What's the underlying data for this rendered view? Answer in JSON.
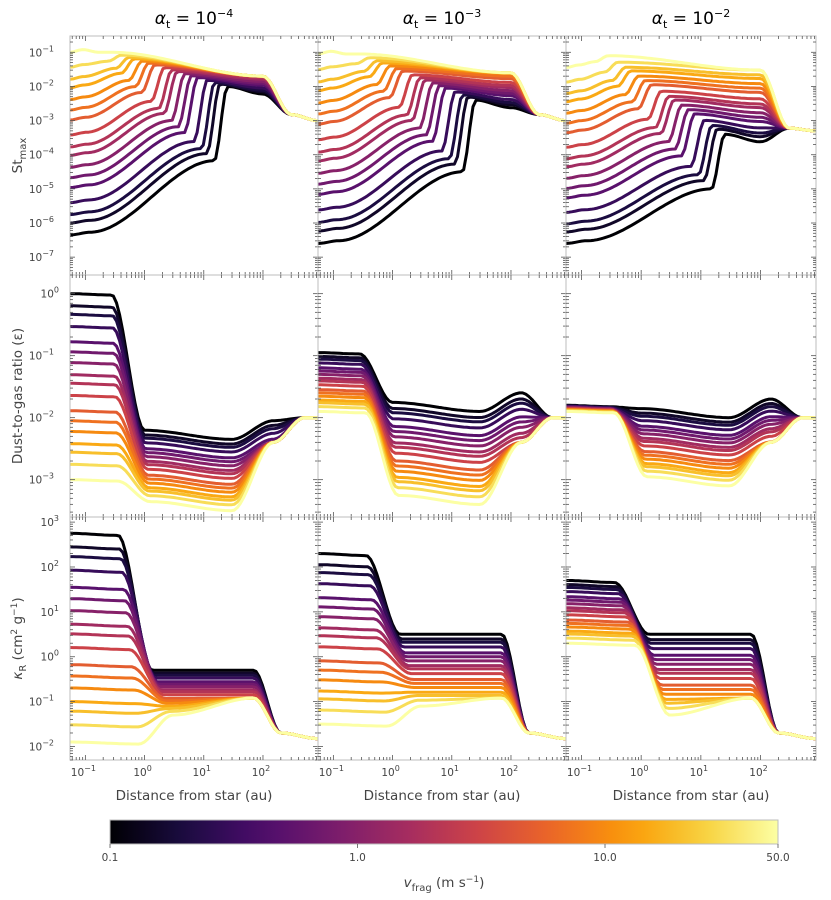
{
  "chart_data": {
    "type": "line",
    "panel_grid": {
      "rows": 3,
      "cols": 3
    },
    "column_titles": [
      "α_t = 10^-4",
      "α_t = 10^-3",
      "α_t = 10^-2"
    ],
    "row_ylabels": [
      "St_max",
      "Dust-to-gas ratio (ε)",
      "κ_R (cm² g⁻¹)"
    ],
    "xlabel": "Distance from star (au)",
    "x_scale": "log",
    "xlim": [
      0.055,
      850
    ],
    "x_ticks": [
      "10^-1",
      "10^0",
      "10^1",
      "10^2"
    ],
    "rows": [
      {
        "y_scale": "log",
        "ylim": [
          3e-08,
          0.3
        ],
        "y_ticks": [
          "10^-7",
          "10^-6",
          "10^-5",
          "10^-4",
          "10^-3",
          "10^-2",
          "10^-1"
        ]
      },
      {
        "y_scale": "log",
        "ylim": [
          0.00025,
          2
        ],
        "y_ticks": [
          "10^-3",
          "10^-2",
          "10^-1",
          "10^0"
        ]
      },
      {
        "y_scale": "log",
        "ylim": [
          0.005,
          1300
        ],
        "y_ticks": [
          "10^-2",
          "10^-1",
          "10^0",
          "10^1",
          "10^2",
          "10^3"
        ]
      }
    ],
    "colorbar": {
      "label": "v_frag (m s⁻¹)",
      "scale": "log",
      "range": [
        0.1,
        50
      ],
      "tick_labels": [
        "0.1",
        "1.0",
        "10.0",
        "50.0"
      ],
      "tick_values": [
        0.1,
        1.0,
        10.0,
        50.0
      ],
      "colormap": "inferno",
      "stops": [
        "#000004",
        "#1b0c41",
        "#4a0c6b",
        "#781c6d",
        "#a52c60",
        "#cf4446",
        "#ed6925",
        "#fb9b06",
        "#f7d13d",
        "#fcffa4"
      ]
    },
    "vfrag_values": [
      0.1,
      0.15,
      0.2,
      0.3,
      0.5,
      0.7,
      1.0,
      1.5,
      2,
      3,
      5,
      7,
      10,
      15,
      20,
      30,
      50
    ],
    "curves_note": "one curve per vfrag value per panel; y(x) given as piecewise log-log anchor points [x, y]"
  }
}
